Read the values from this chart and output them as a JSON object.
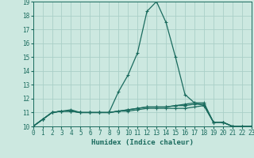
{
  "xlabel": "Humidex (Indice chaleur)",
  "bg_color": "#cce8e0",
  "grid_color": "#aacfc8",
  "line_color": "#1a6b5e",
  "xlim": [
    0,
    23
  ],
  "ylim": [
    10,
    19
  ],
  "xticks": [
    0,
    1,
    2,
    3,
    4,
    5,
    6,
    7,
    8,
    9,
    10,
    11,
    12,
    13,
    14,
    15,
    16,
    17,
    18,
    19,
    20,
    21,
    22,
    23
  ],
  "yticks": [
    10,
    11,
    12,
    13,
    14,
    15,
    16,
    17,
    18,
    19
  ],
  "lines": [
    [
      10.0,
      10.5,
      11.0,
      11.1,
      11.1,
      11.0,
      11.0,
      11.0,
      11.0,
      12.5,
      13.7,
      15.3,
      18.3,
      19.0,
      17.5,
      15.0,
      12.3,
      11.7,
      11.5,
      10.3,
      10.3,
      10.0,
      10.0,
      10.0
    ],
    [
      10.0,
      10.5,
      11.0,
      11.1,
      11.2,
      11.0,
      11.0,
      11.0,
      11.0,
      11.1,
      11.2,
      11.3,
      11.4,
      11.4,
      11.4,
      11.5,
      11.6,
      11.7,
      11.7,
      10.3,
      10.3,
      10.0,
      9.9,
      10.0
    ],
    [
      10.0,
      10.5,
      11.0,
      11.1,
      11.1,
      11.0,
      11.0,
      11.0,
      11.0,
      11.1,
      11.1,
      11.2,
      11.3,
      11.3,
      11.3,
      11.3,
      11.3,
      11.4,
      11.5,
      10.3,
      10.3,
      10.0,
      10.0,
      10.0
    ],
    [
      10.0,
      10.5,
      11.0,
      11.1,
      11.1,
      11.0,
      11.0,
      11.0,
      11.0,
      11.1,
      11.2,
      11.3,
      11.4,
      11.4,
      11.4,
      11.5,
      11.5,
      11.6,
      11.6,
      10.3,
      10.3,
      10.0,
      10.0,
      10.0
    ]
  ]
}
